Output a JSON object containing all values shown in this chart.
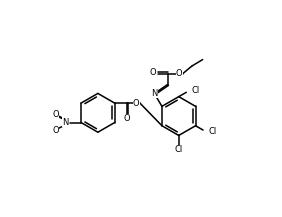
{
  "bg": "#ffffff",
  "lc": "#000000",
  "lw": 1.1,
  "fs": 6.0,
  "figsize": [
    2.82,
    2.17
  ],
  "dpi": 100,
  "xlim": [
    -1,
    11
  ],
  "ylim": [
    -0.5,
    9.5
  ],
  "ring_r": 0.9,
  "inner_off": 0.11,
  "inner_shrink": 0.14
}
